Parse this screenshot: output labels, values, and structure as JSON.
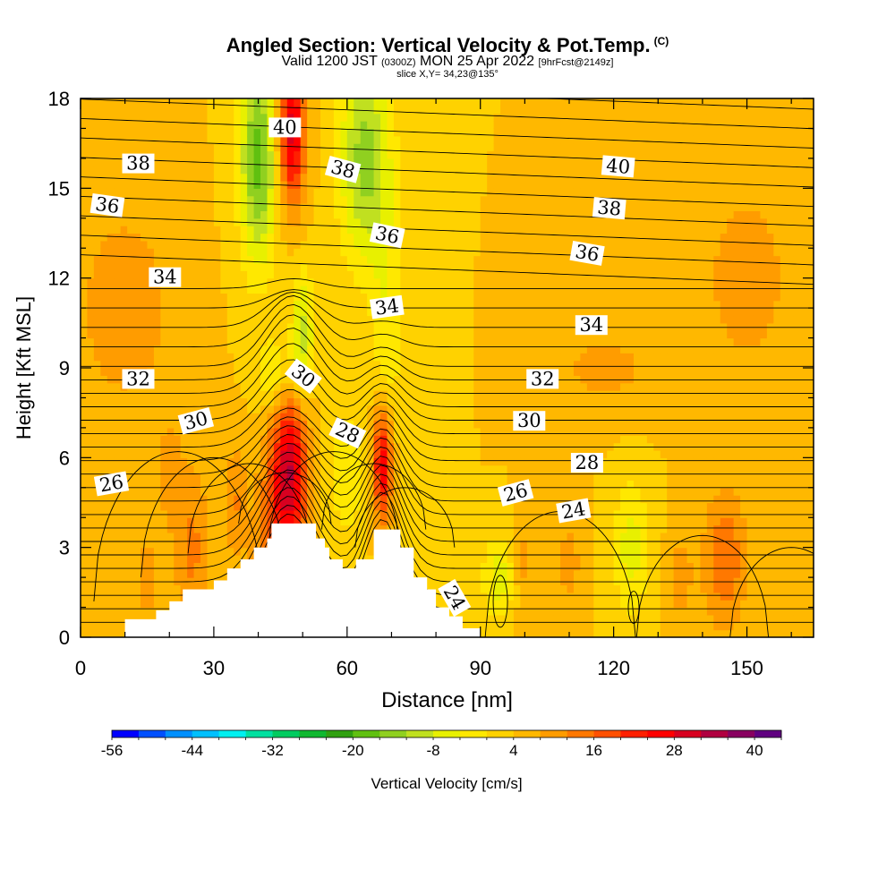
{
  "title": {
    "main": "Angled Section: Vertical Velocity & Pot.Temp.",
    "copyright": "(C)",
    "valid_prefix": "Valid 1200 JST",
    "utc": "(0300Z)",
    "valid_date": "MON 25 Apr 2022",
    "forecast": "[9hrFcst@2149z]",
    "slice": "slice X,Y= 34,23@135°"
  },
  "chart_data": {
    "type": "heatmap",
    "xlabel": "Distance [nm]",
    "ylabel": "Height [Kft MSL]",
    "xlim": [
      0,
      165
    ],
    "ylim": [
      0,
      18
    ],
    "x_ticks": [
      0,
      30,
      60,
      90,
      120,
      150
    ],
    "y_ticks": [
      0,
      3,
      6,
      9,
      12,
      15,
      18
    ],
    "colorbar": {
      "label": "Vertical Velocity [cm/s]",
      "min": -56,
      "max": 44,
      "step": 4,
      "tick_labels": [
        -56,
        -44,
        -32,
        -20,
        -8,
        4,
        16,
        28,
        40
      ],
      "colors": [
        "#0000ff",
        "#0050ff",
        "#0090ff",
        "#00c0ff",
        "#00f0f0",
        "#00e0a0",
        "#00cc60",
        "#10b830",
        "#30a010",
        "#60c010",
        "#90d020",
        "#c0e020",
        "#e8f000",
        "#ffe800",
        "#ffd200",
        "#ffb800",
        "#ff9c00",
        "#ff7800",
        "#ff5000",
        "#ff2000",
        "#ff0000",
        "#d80020",
        "#b00040",
        "#880060",
        "#600080"
      ]
    },
    "terrain_profile": [
      [
        0,
        0
      ],
      [
        10,
        0
      ],
      [
        10,
        0.6
      ],
      [
        17,
        0.6
      ],
      [
        17,
        0.9
      ],
      [
        20,
        0.9
      ],
      [
        20,
        1.2
      ],
      [
        23,
        1.2
      ],
      [
        23,
        1.6
      ],
      [
        30,
        1.6
      ],
      [
        30,
        1.9
      ],
      [
        33,
        1.9
      ],
      [
        33,
        2.3
      ],
      [
        36,
        2.3
      ],
      [
        36,
        2.6
      ],
      [
        39,
        2.6
      ],
      [
        39,
        3.0
      ],
      [
        42,
        3.0
      ],
      [
        42,
        3.3
      ],
      [
        43,
        3.3
      ],
      [
        43,
        3.8
      ],
      [
        53,
        3.8
      ],
      [
        53,
        3.3
      ],
      [
        55,
        3.3
      ],
      [
        55,
        3.0
      ],
      [
        56,
        3.0
      ],
      [
        56,
        2.6
      ],
      [
        59,
        2.6
      ],
      [
        59,
        2.3
      ],
      [
        62,
        2.3
      ],
      [
        62,
        2.6
      ],
      [
        66,
        2.6
      ],
      [
        66,
        3.6
      ],
      [
        72,
        3.6
      ],
      [
        72,
        3.0
      ],
      [
        75,
        3.0
      ],
      [
        75,
        2.0
      ],
      [
        78,
        2.0
      ],
      [
        78,
        1.6
      ],
      [
        80,
        1.6
      ],
      [
        80,
        1.0
      ],
      [
        83,
        1.0
      ],
      [
        83,
        0.7
      ],
      [
        86,
        0.7
      ],
      [
        86,
        0.3
      ],
      [
        90,
        0.3
      ],
      [
        90,
        0
      ],
      [
        165,
        0
      ]
    ],
    "theta_contour_labels": [
      {
        "text": "40",
        "x": 46,
        "y": 17.0,
        "angle": 0
      },
      {
        "text": "38",
        "x": 13,
        "y": 15.8,
        "angle": 0
      },
      {
        "text": "38",
        "x": 59,
        "y": 15.6,
        "angle": 15
      },
      {
        "text": "40",
        "x": 121,
        "y": 15.7,
        "angle": 5
      },
      {
        "text": "36",
        "x": 6,
        "y": 14.4,
        "angle": 8
      },
      {
        "text": "38",
        "x": 119,
        "y": 14.3,
        "angle": 5
      },
      {
        "text": "36",
        "x": 69,
        "y": 13.4,
        "angle": 12
      },
      {
        "text": "36",
        "x": 114,
        "y": 12.8,
        "angle": 10
      },
      {
        "text": "34",
        "x": 19,
        "y": 12.0,
        "angle": 0
      },
      {
        "text": "34",
        "x": 69,
        "y": 11.0,
        "angle": -8
      },
      {
        "text": "34",
        "x": 115,
        "y": 10.4,
        "angle": 0
      },
      {
        "text": "30",
        "x": 50,
        "y": 8.7,
        "angle": 38
      },
      {
        "text": "32",
        "x": 13,
        "y": 8.6,
        "angle": 0
      },
      {
        "text": "32",
        "x": 104,
        "y": 8.6,
        "angle": 0
      },
      {
        "text": "30",
        "x": 26,
        "y": 7.2,
        "angle": -15
      },
      {
        "text": "30",
        "x": 101,
        "y": 7.2,
        "angle": 0
      },
      {
        "text": "28",
        "x": 60,
        "y": 6.8,
        "angle": 25
      },
      {
        "text": "28",
        "x": 114,
        "y": 5.8,
        "angle": 0
      },
      {
        "text": "26",
        "x": 7,
        "y": 5.1,
        "angle": -10
      },
      {
        "text": "26",
        "x": 98,
        "y": 4.8,
        "angle": -15
      },
      {
        "text": "24",
        "x": 111,
        "y": 4.2,
        "angle": -10
      },
      {
        "text": "24",
        "x": 84,
        "y": 1.3,
        "angle": 60
      }
    ]
  }
}
